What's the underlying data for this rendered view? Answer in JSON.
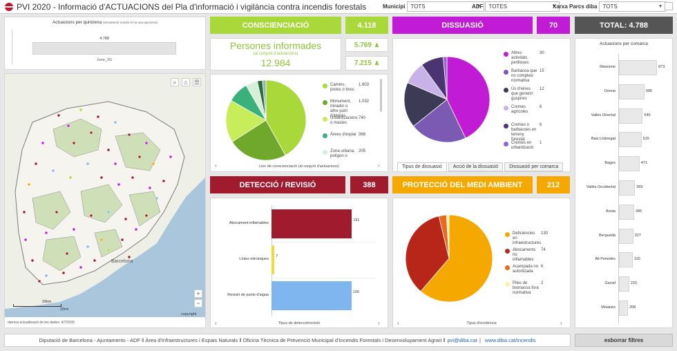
{
  "header": {
    "title": "PVI 2020 - Informació d'ACTUACIONS del Pla d'informació i vigilància contra incendis forestals",
    "filters": [
      {
        "label": "Municipi",
        "value": "TOTS"
      },
      {
        "label": "ADF",
        "value": "TOTES"
      },
      {
        "label": "Xarxa Parcs diba",
        "value": "TOTS"
      }
    ]
  },
  "quinzena": {
    "title": "Actuacions per quinzena",
    "subtitle": "(actualment només hi ha una quinzena)",
    "value_label": "4.788",
    "x_label": "June_2G",
    "value": 4788
  },
  "map": {
    "footnote": "darrera actualització de les dades: 4/7/2020",
    "city_label": "Barcelona",
    "scale_km": "20km",
    "scale_mi": "20mi",
    "copyright": "copyright",
    "zoom_in": "+",
    "zoom_out": "−",
    "colors": {
      "sea": "#a9c6dd",
      "land": "#eef0e7",
      "forest": "#cfe0b8",
      "border": "#8a8a8a"
    }
  },
  "consciencia": {
    "label": "CONSCIENCIACIÓ",
    "value": "4.118",
    "color": "#a8d83a",
    "persons_title": "Persones informades",
    "persons_sub": "(al conjunt d'actuacions)",
    "persons_value": "12.984",
    "badge1": "5.769",
    "badge2": "7.215",
    "pie_caption": "Lloc de conscienciació (al conjunt d'actuacions)",
    "legend": [
      {
        "label": "Camins, pistes o bosc",
        "value": "1.803",
        "color": "#a8d83a"
      },
      {
        "label": "Monument, mirador o altre punt d'interès",
        "value": "1.032",
        "color": "#6fa82a"
      },
      {
        "label": "Urbanitzacions o masies",
        "value": "740",
        "color": "#c7ee5a"
      },
      {
        "label": "Àrees d'esplai",
        "value": "368",
        "color": "#3ab07a"
      },
      {
        "label": "Zona urbana, polígon o",
        "value": "205",
        "color": "#d5f0d8"
      }
    ],
    "pie": [
      1803,
      1032,
      740,
      368,
      205,
      90,
      60
    ],
    "pie_colors": [
      "#a8d83a",
      "#6fa82a",
      "#c7ee5a",
      "#3ab07a",
      "#d5f0d8",
      "#2f6b3c",
      "#92b9a5"
    ]
  },
  "dissuasio": {
    "label": "DISSUASIÓ",
    "value": "70",
    "color": "#c21bd6",
    "tabs": [
      "Tipus de dissuasió",
      "Acció de la dissuasió",
      "Dissuasió per comarca"
    ],
    "legend": [
      {
        "label": "Altres activitats perilloses",
        "value": "30",
        "color": "#c21bd6"
      },
      {
        "label": "Barbacoa que no compleix normativa",
        "value": "15",
        "color": "#7b5ab3"
      },
      {
        "label": "Ús d'eines que generin guspires",
        "value": "12",
        "color": "#3c3a55"
      },
      {
        "label": "Cremes agrícoles",
        "value": "6",
        "color": "#c9b2e8"
      },
      {
        "label": "Cremes o barbacoes en terreny forestal",
        "value": "6",
        "color": "#4a3572"
      },
      {
        "label": "Cremes en urbanització",
        "value": "1",
        "color": "#8d6ac9"
      }
    ],
    "pie": [
      30,
      15,
      12,
      6,
      6,
      1
    ],
    "pie_colors": [
      "#c21bd6",
      "#7b5ab3",
      "#3c3a55",
      "#c9b2e8",
      "#4a3572",
      "#8d6ac9"
    ]
  },
  "total": {
    "label": "TOTAL: 4.788"
  },
  "deteccio": {
    "label": "DETECCIÓ / REVISIÓ",
    "value": "388",
    "color": "#a11b2e",
    "caption": "Tipus de detecció/revisió"
  },
  "proteccio": {
    "label": "PROTECCIÓ DEL MEDI AMBIENT",
    "value": "212",
    "color": "#f5a800",
    "caption": "Tipus d'incidència",
    "legend": [
      {
        "label": "Deficiències en infraestructures",
        "value": "130",
        "color": "#f5a800"
      },
      {
        "label": "Abocaments no inflamables",
        "value": "74",
        "color": "#b8261a"
      },
      {
        "label": "Acampada no autoritzada",
        "value": "6",
        "color": "#e86a1e"
      },
      {
        "label": "Piles de biomassa fora normativa",
        "value": "2",
        "color": "#fff2a6"
      }
    ],
    "pie": [
      130,
      74,
      6,
      2
    ],
    "pie_colors": [
      "#f5a800",
      "#b8261a",
      "#e86a1e",
      "#fff2a6"
    ]
  },
  "comarca": {
    "title": "Actuacions per comarca"
  },
  "chart_data": [
    {
      "type": "bar",
      "orientation": "horizontal",
      "title": "Actuacions per comarca",
      "categories": [
        "Maresme",
        "Osona",
        "Vallès Oriental",
        "Baix Llobregat",
        "Bages",
        "Vallès Occidental",
        "Anoia",
        "Berguedà",
        "Alt Penedès",
        "Garraf",
        "Moianès"
      ],
      "values": [
        873,
        585,
        545,
        516,
        471,
        369,
        346,
        327,
        315,
        233,
        208
      ],
      "xlim": [
        0,
        950
      ]
    },
    {
      "type": "bar",
      "orientation": "horizontal",
      "title": "",
      "categories": [
        "Abocament inflamables",
        "Línies elèctriques",
        "Revisió de punts d'aigua"
      ],
      "values": [
        191,
        7,
        190
      ],
      "colors": [
        "#a11b2e",
        "#f5d83a",
        "#7fb6f0"
      ],
      "xlabel": "Tipus de detecció/revisió",
      "xlim": [
        0,
        230
      ]
    }
  ],
  "footer": {
    "text": "Diputació de Barcelona - Ajuntaments - ADF ‖ Àrea d'Infraestructures i Espais Naturals ‖ Oficina Tècnica de Prevenció Municipal d'Incendis Forestals i Desenvolupament Agrari ‖",
    "email": "pvi@diba.cat",
    "sep": "|",
    "web": "www.diba.cat/incendis",
    "clear_button": "esborrar filtres"
  }
}
